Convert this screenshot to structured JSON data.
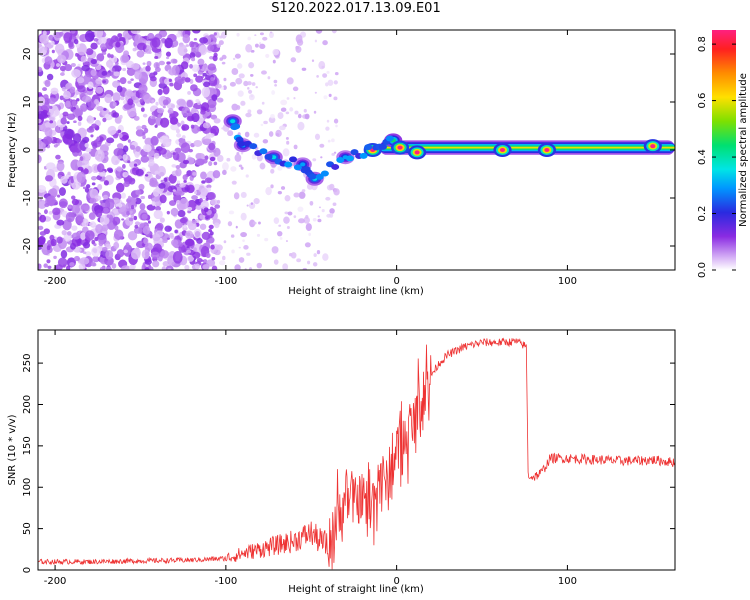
{
  "figure": {
    "title": "S120.2022.017.13.09.E01"
  },
  "chart_data": [
    {
      "type": "heatmap",
      "xlabel": "Height of straight line (km)",
      "ylabel": "Frequency (Hz)",
      "xlim": [
        -210,
        163
      ],
      "ylim": [
        -25,
        25
      ],
      "xticks": [
        -200,
        -100,
        0,
        100
      ],
      "yticks": [
        -20,
        -10,
        0,
        10,
        20
      ],
      "grid": false,
      "colorbar": {
        "label": "Normalized spectral amplitude",
        "range": [
          0.0,
          0.85
        ],
        "ticks": [
          "0.0",
          "0.2",
          "0.4",
          "0.6",
          "0.8"
        ],
        "colormap": "rainbow (violet-blue-cyan-green-yellow-orange-red-pink)"
      },
      "regions": [
        {
          "description": "noise",
          "x_range": [
            -210,
            -105
          ],
          "freq_range": [
            -25,
            25
          ],
          "amplitude": "low, scattered (~0.05-0.1)"
        },
        {
          "description": "sparse noise",
          "x_range": [
            -105,
            -35
          ],
          "freq_range": [
            -25,
            25
          ],
          "amplitude": "very low, sparse"
        },
        {
          "description": "signal band",
          "x_range": [
            -10,
            163
          ],
          "freq_center": 0.5,
          "freq_halfwidth": 1.5,
          "amplitude": "0.3-0.85 along centre line"
        }
      ],
      "features": [
        {
          "x": -96,
          "freq": 6,
          "amplitude": 0.35
        },
        {
          "x": -90,
          "freq": 1,
          "amplitude": 0.3
        },
        {
          "x": -72,
          "freq": -1.5,
          "amplitude": 0.35
        },
        {
          "x": -55,
          "freq": -3,
          "amplitude": 0.3
        },
        {
          "x": -48,
          "freq": -6,
          "amplitude": 0.35
        },
        {
          "x": -30,
          "freq": -1.5,
          "amplitude": 0.3
        },
        {
          "x": -14,
          "freq": 0,
          "amplitude": 0.9
        },
        {
          "x": -2,
          "freq": 2,
          "amplitude": 0.45
        },
        {
          "x": 2,
          "freq": 0.5,
          "amplitude": 0.9
        },
        {
          "x": 12,
          "freq": -0.5,
          "amplitude": 0.85
        },
        {
          "x": 62,
          "freq": 0,
          "amplitude": 0.85
        },
        {
          "x": 88,
          "freq": 0,
          "amplitude": 0.85
        },
        {
          "x": 150,
          "freq": 0.8,
          "amplitude": 0.85
        }
      ]
    },
    {
      "type": "line",
      "xlabel": "Height of straight line (km)",
      "ylabel": "SNR (10 * v/v)",
      "xlim": [
        -210,
        163
      ],
      "ylim": [
        0,
        290
      ],
      "xticks": [
        -200,
        -100,
        0,
        100
      ],
      "yticks": [
        0,
        50,
        100,
        150,
        200,
        250
      ],
      "grid": false,
      "color": "#ee3333",
      "series": [
        {
          "x": [
            -210,
            -180,
            -150,
            -120,
            -100,
            -90,
            -80,
            -70,
            -60,
            -50,
            -45,
            -40,
            -35,
            -30,
            -25,
            -20,
            -15,
            -10,
            -5,
            0,
            5,
            10,
            15,
            20,
            25,
            30,
            35,
            40,
            50,
            60,
            70,
            76,
            77,
            80,
            85,
            90,
            100,
            110,
            120,
            130,
            140,
            150,
            163
          ],
          "y": [
            10,
            10,
            11,
            12,
            14,
            20,
            25,
            30,
            35,
            45,
            35,
            30,
            60,
            90,
            80,
            90,
            75,
            120,
            100,
            150,
            160,
            180,
            210,
            235,
            250,
            260,
            265,
            270,
            275,
            275,
            276,
            270,
            115,
            112,
            118,
            135,
            135,
            134,
            133,
            132,
            132,
            133,
            130
          ]
        }
      ]
    }
  ]
}
